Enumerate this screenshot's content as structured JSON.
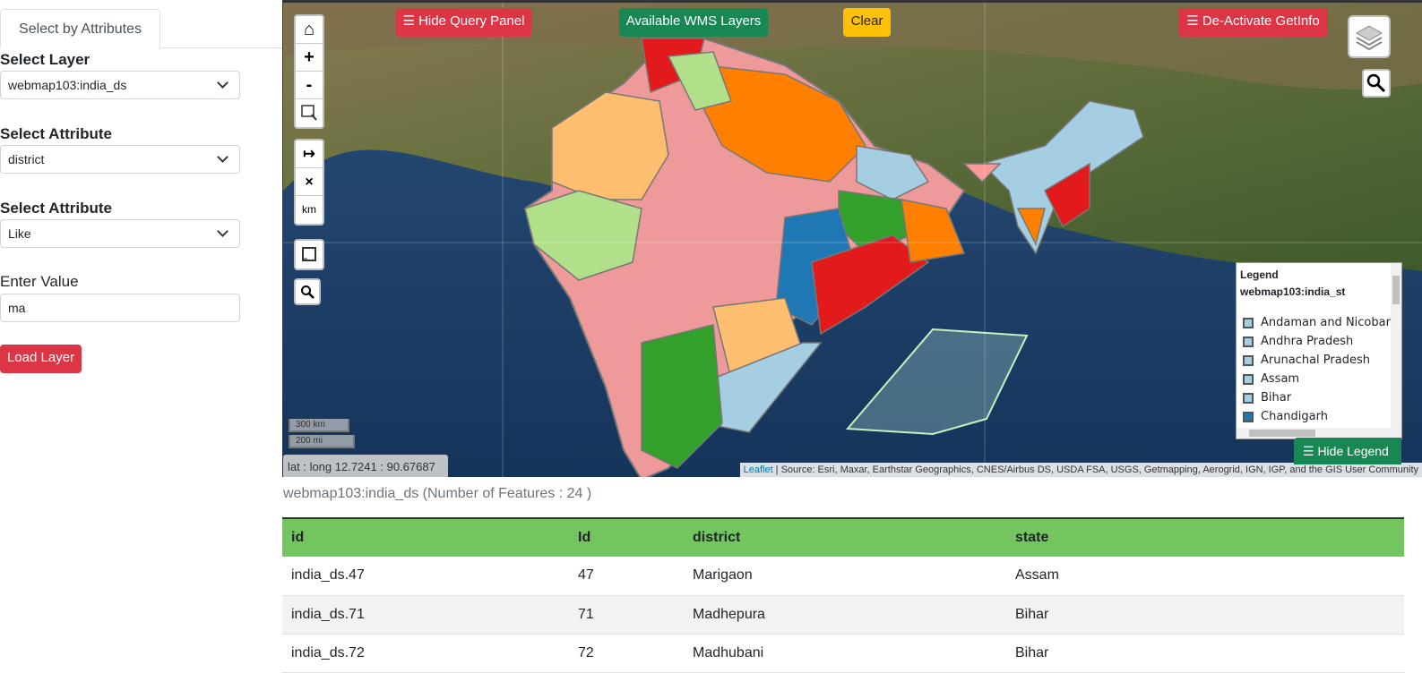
{
  "sidebar": {
    "tab_label": "Select by Attributes",
    "layer_label": "Select Layer",
    "layer_value": "webmap103:india_ds",
    "attribute_label": "Select Attribute",
    "attribute_value": "district",
    "operator_label": "Select Attribute",
    "operator_value": "Like",
    "value_label": "Enter Value",
    "value_input": "ma",
    "load_button": "Load Layer"
  },
  "map": {
    "hide_query_button": "☰ Hide Query Panel",
    "wms_button": "Available WMS Layers",
    "clear_button": "Clear",
    "getinfo_button": "☰ De-Activate GetInfo",
    "controls": {
      "home": "⌂",
      "zoom_in": "+",
      "zoom_out": "-",
      "measure_unit": "km"
    },
    "scale_km": "300 km",
    "scale_mi": "200 mi",
    "latlng": "lat : long 12.7241 : 90.67687",
    "attribution_link": "Leaflet",
    "attribution_text": " | Source: Esri, Maxar, Earthstar Geographics, CNES/Airbus DS, USDA FSA, USGS, Getmapping, Aerogrid, IGN, IGP, and the GIS User Community",
    "legend": {
      "title": "Legend",
      "layer": "webmap103:india_st",
      "items": [
        {
          "label": "Andaman and Nicobar",
          "color": "#a6cee3"
        },
        {
          "label": "Andhra Pradesh",
          "color": "#a6cee3"
        },
        {
          "label": "Arunachal Pradesh",
          "color": "#a6cee3"
        },
        {
          "label": "Assam",
          "color": "#a6cee3"
        },
        {
          "label": "Bihar",
          "color": "#a6cee3"
        },
        {
          "label": "Chandigarh",
          "color": "#1f78b4"
        }
      ]
    },
    "hide_legend_button": "☰ Hide Legend"
  },
  "results": {
    "title": "webmap103:india_ds (Number of Features : 24 )",
    "columns": [
      "id",
      "Id",
      "district",
      "state"
    ],
    "rows": [
      [
        "india_ds.47",
        "47",
        "Marigaon",
        "Assam"
      ],
      [
        "india_ds.71",
        "71",
        "Madhepura",
        "Bihar"
      ],
      [
        "india_ds.72",
        "72",
        "Madhubani",
        "Bihar"
      ]
    ]
  },
  "colors": {
    "danger": "#dc3545",
    "success": "#198754",
    "warning": "#ffc107",
    "table_header": "#72c55f"
  }
}
